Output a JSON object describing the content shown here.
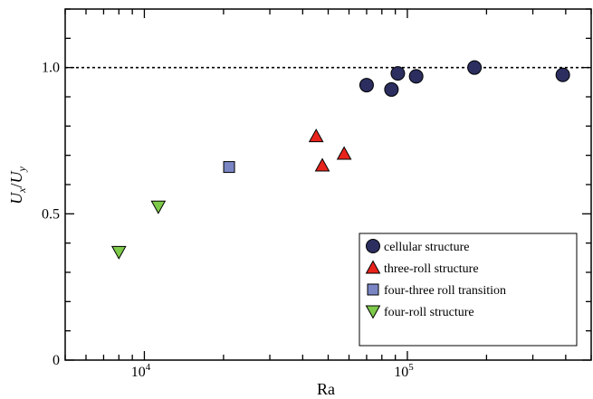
{
  "chart_data": {
    "type": "scatter",
    "xscale": "log",
    "xlim": [
      5000,
      500000
    ],
    "ylim": [
      0,
      1.2
    ],
    "xlabel": "Ra",
    "ylabel": "U_x / U_y",
    "ylabel_parts": {
      "u1": "U",
      "s1": "x",
      "slash": "/",
      "u2": "U",
      "s2": "y"
    },
    "yticks": [
      {
        "value": 0,
        "label": "0"
      },
      {
        "value": 0.5,
        "label": "0.5"
      },
      {
        "value": 1.0,
        "label": "1.0"
      }
    ],
    "xticks": [
      {
        "value": 10000,
        "base": "10",
        "exp": "4"
      },
      {
        "value": 100000,
        "base": "10",
        "exp": "5"
      }
    ],
    "reference_line": {
      "y": 1.0,
      "style": "dotted"
    },
    "legend_placement": "bottom-right",
    "series": [
      {
        "name": "cellular structure",
        "marker": "circle",
        "color": "#2b2e5e",
        "points": [
          {
            "x": 70000,
            "y": 0.94
          },
          {
            "x": 87000,
            "y": 0.925
          },
          {
            "x": 92000,
            "y": 0.98
          },
          {
            "x": 108000,
            "y": 0.97
          },
          {
            "x": 180000,
            "y": 1.0
          },
          {
            "x": 390000,
            "y": 0.975
          }
        ]
      },
      {
        "name": "three-roll structure",
        "marker": "triangle-up",
        "color": "#e8231c",
        "points": [
          {
            "x": 45000,
            "y": 0.765
          },
          {
            "x": 47500,
            "y": 0.665
          },
          {
            "x": 57500,
            "y": 0.705
          }
        ]
      },
      {
        "name": "four-three roll transition",
        "marker": "square",
        "color": "#7a86c4",
        "points": [
          {
            "x": 21000,
            "y": 0.66
          }
        ]
      },
      {
        "name": "four-roll structure",
        "marker": "triangle-down",
        "color": "#7dc94a",
        "points": [
          {
            "x": 8000,
            "y": 0.37
          },
          {
            "x": 11300,
            "y": 0.525
          }
        ]
      }
    ]
  }
}
